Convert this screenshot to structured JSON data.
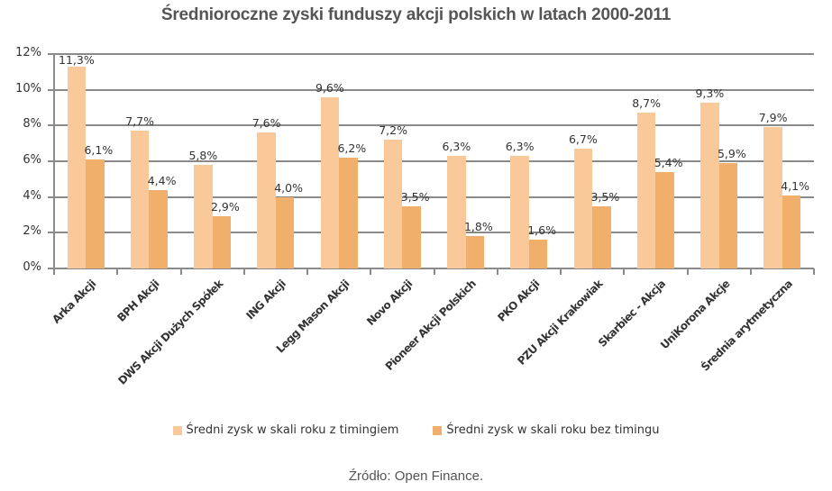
{
  "chart_data": {
    "type": "bar",
    "title": "Średnioroczne zyski funduszy akcji polskich w latach 2000-2011",
    "xlabel": "",
    "ylabel": "",
    "ylim": [
      0,
      12
    ],
    "yticks": [
      "0%",
      "2%",
      "4%",
      "6%",
      "8%",
      "10%",
      "12%"
    ],
    "grid": true,
    "legend_position": "bottom",
    "categories": [
      "Arka Akcji",
      "BPH Akcji",
      "DWS Akcji Dużych Spółek",
      "ING Akcji",
      "Legg Mason Akcji",
      "Novo Akcji",
      "Pioneer Akcji Polskich",
      "PKO Akcji",
      "PZU Akcji Krakowiak",
      "Skarbiec - Akcja",
      "UniKorona Akcje",
      "Średnia arytmetyczna"
    ],
    "series": [
      {
        "name": "Średni zysk w skali roku z timingiem",
        "color": "#F9C99A",
        "values": [
          11.3,
          7.7,
          5.8,
          7.6,
          9.6,
          7.2,
          6.3,
          6.3,
          6.7,
          8.7,
          9.3,
          7.9
        ],
        "labels": [
          "11,3%",
          "7,7%",
          "5,8%",
          "7,6%",
          "9,6%",
          "7,2%",
          "6,3%",
          "6,3%",
          "6,7%",
          "8,7%",
          "9,3%",
          "7,9%"
        ]
      },
      {
        "name": "Średni zysk w skali roku bez timingu",
        "color": "#F0AF6B",
        "values": [
          6.1,
          4.4,
          2.9,
          4.0,
          6.2,
          3.5,
          1.8,
          1.6,
          3.5,
          5.4,
          5.9,
          4.1
        ],
        "labels": [
          "6,1%",
          "4,4%",
          "2,9%",
          "4,0%",
          "6,2%",
          "3,5%",
          "1,8%",
          "1,6%",
          "3,5%",
          "5,4%",
          "5,9%",
          "4,1%"
        ]
      }
    ]
  },
  "source": "Źródło: Open Finance."
}
